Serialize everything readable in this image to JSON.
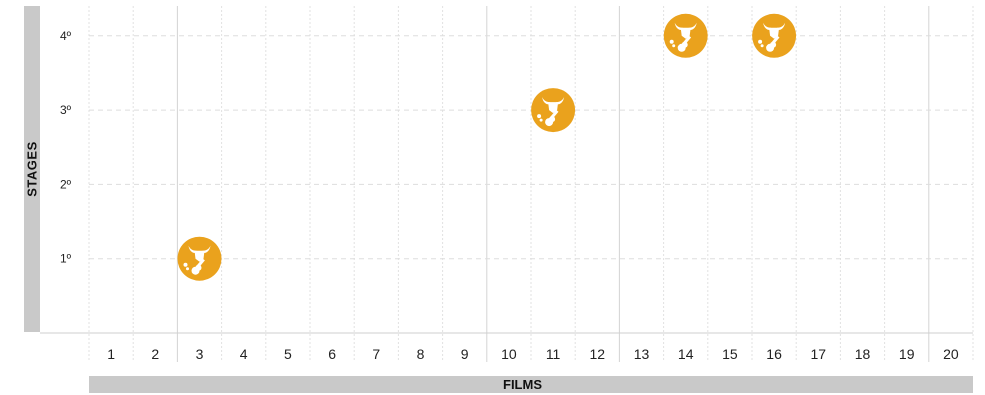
{
  "chart_data": {
    "type": "scatter",
    "xlabel": "FILMS",
    "ylabel": "STAGES",
    "x_ticks": [
      "1",
      "2",
      "3",
      "4",
      "5",
      "6",
      "7",
      "8",
      "9",
      "10",
      "11",
      "12",
      "13",
      "14",
      "15",
      "16",
      "17",
      "18",
      "19",
      "20"
    ],
    "y_ticks": [
      "1º",
      "2º",
      "3º",
      "4º"
    ],
    "xlim": [
      0,
      20
    ],
    "ylim": [
      0,
      4.3
    ],
    "points": [
      {
        "x": 3,
        "y": 1
      },
      {
        "x": 11,
        "y": 3
      },
      {
        "x": 14,
        "y": 4
      },
      {
        "x": 16,
        "y": 4
      }
    ],
    "marker_icon": "bull-guitar-icon",
    "marker_color": "#eaa21d",
    "grid": true
  }
}
